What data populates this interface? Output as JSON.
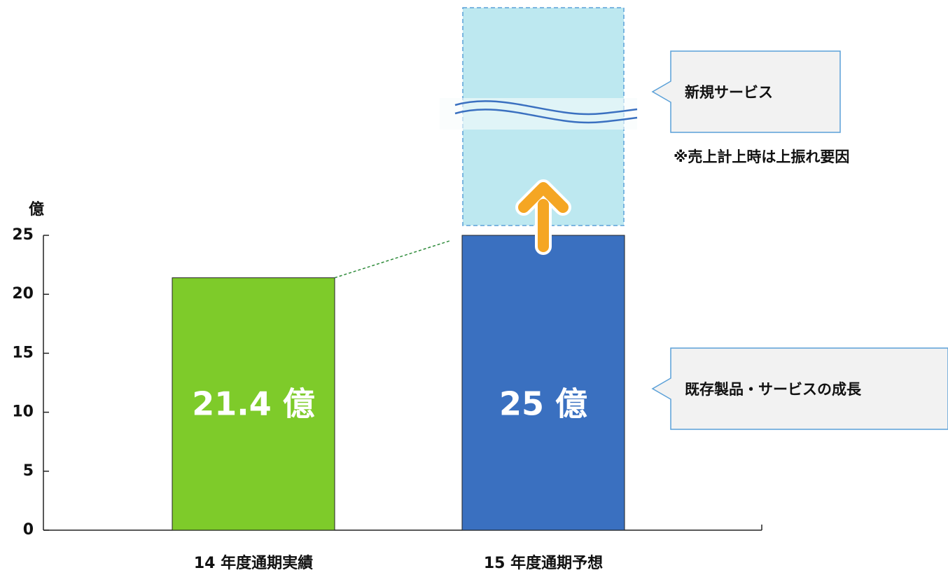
{
  "chart_data": {
    "type": "bar",
    "y_unit": "億",
    "categories": [
      "14 年度通期実績",
      "15 年度通期予想"
    ],
    "values": [
      21.4,
      25
    ],
    "value_labels": [
      "21.4 億",
      "25 億"
    ],
    "colors": [
      "#7ecb2a",
      "#3a70c0"
    ],
    "ylim": [
      0,
      25
    ],
    "yticks": [
      0,
      5,
      10,
      15,
      20,
      25
    ],
    "annotations": [
      "新規サービス",
      "※売上計上時は上振れ要因",
      "既存製品・サービスの成長"
    ]
  }
}
